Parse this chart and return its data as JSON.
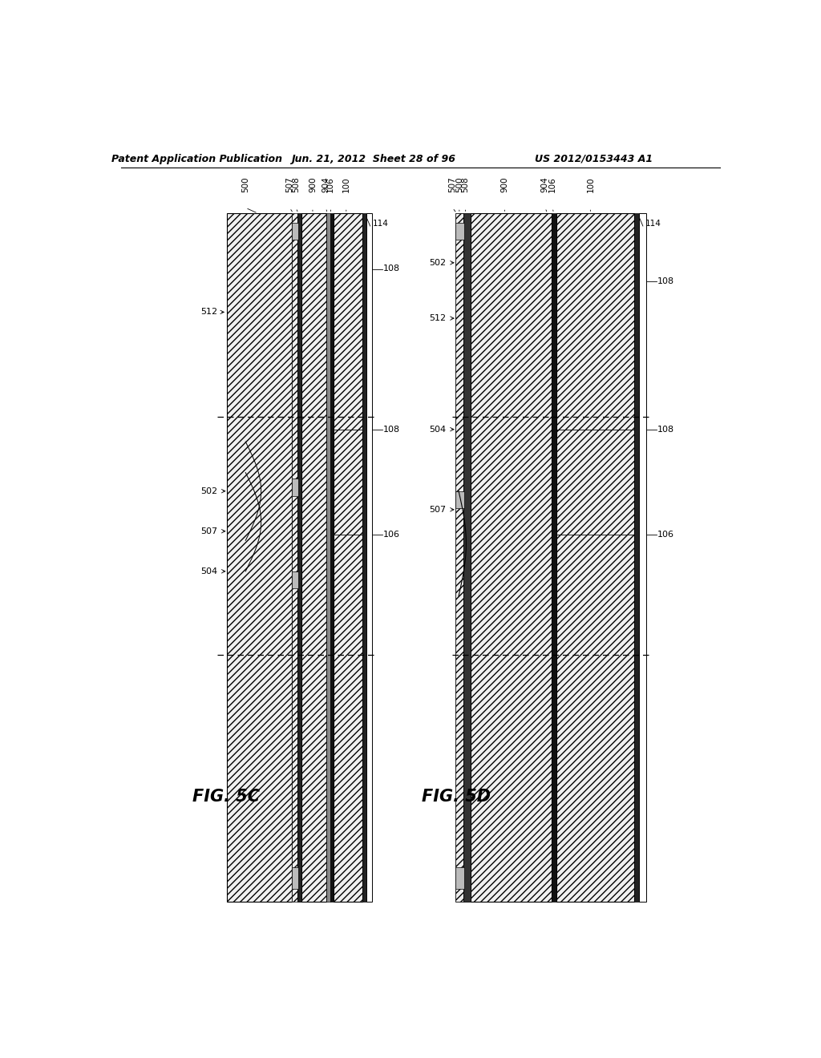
{
  "title_left": "Patent Application Publication",
  "title_mid": "Jun. 21, 2012  Sheet 28 of 96",
  "title_right": "US 2012/0153443 A1",
  "fig_c_label": "FIG. 5C",
  "fig_d_label": "FIG. 5D",
  "bg_color": "#ffffff"
}
